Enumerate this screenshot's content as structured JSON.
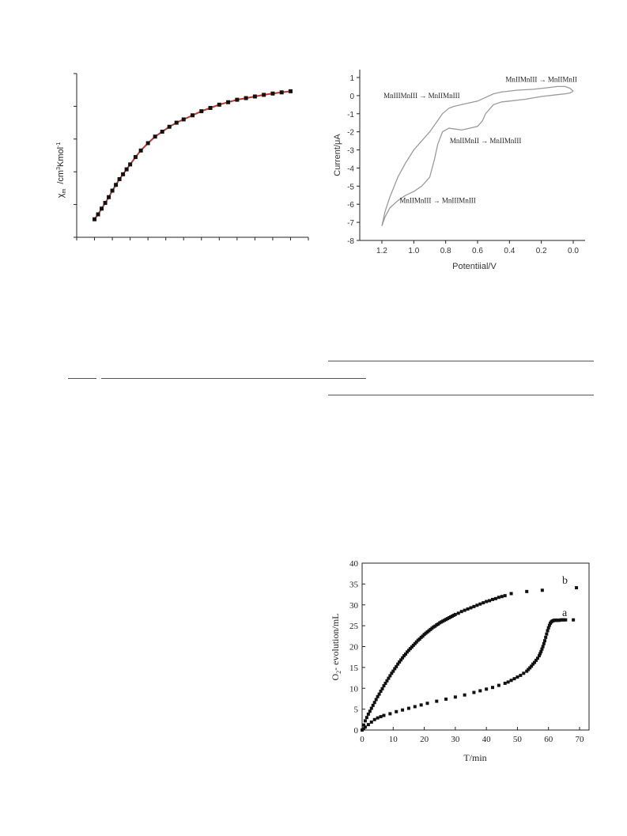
{
  "chi_chart": {
    "chart_data": {
      "type": "scatter",
      "ylabel": "χm /cm3Kmol-1",
      "ylabel_main": "χ",
      "ylabel_sub": "m",
      "ylabel_unit_a": "/cm",
      "ylabel_unit_sup3": "3",
      "ylabel_unit_b": "Kmol",
      "ylabel_unit_sup": "-1",
      "ylim": [
        0,
        10
      ],
      "xlim": [
        0,
        13
      ],
      "grid": false,
      "series": [
        {
          "x": [
            1,
            1.2,
            1.4,
            1.6,
            1.8,
            2,
            2.2,
            2.4,
            2.6,
            2.8,
            3,
            3.3,
            3.6,
            4,
            4.4,
            4.8,
            5.2,
            5.6,
            6,
            6.5,
            7,
            7.5,
            8,
            8.5,
            9,
            9.5,
            10,
            10.5,
            11,
            11.5,
            12
          ],
          "y": [
            1.1,
            1.4,
            1.75,
            2.1,
            2.45,
            2.85,
            3.2,
            3.55,
            3.85,
            4.15,
            4.45,
            4.9,
            5.3,
            5.75,
            6.15,
            6.45,
            6.75,
            7,
            7.2,
            7.45,
            7.7,
            7.9,
            8.1,
            8.25,
            8.4,
            8.5,
            8.6,
            8.7,
            8.78,
            8.85,
            8.92
          ]
        }
      ]
    }
  },
  "cv_chart": {
    "chart_data": {
      "type": "line",
      "xlabel": "Potentiial/V",
      "ylabel": "Current/μA",
      "xlim": [
        1.2,
        0.0
      ],
      "ylim": [
        -8,
        1
      ],
      "xticks": [
        "1.2",
        "1.0",
        "0.8",
        "0.6",
        "0.4",
        "0.2",
        "0.0"
      ],
      "xtick_values": [
        1.2,
        1.0,
        0.8,
        0.6,
        0.4,
        0.2,
        0.0
      ],
      "yticks": [
        "1",
        "0",
        "-1",
        "-2",
        "-3",
        "-4",
        "-5",
        "-6",
        "-7",
        "-8"
      ],
      "ytick_values": [
        1,
        0,
        -1,
        -2,
        -3,
        -4,
        -5,
        -6,
        -7,
        -8
      ],
      "grid": false,
      "color": "#9a9a9a",
      "series": [
        {
          "x": [
            0.0,
            0.02,
            0.05,
            0.1,
            0.15,
            0.25,
            0.35,
            0.45,
            0.5,
            0.55,
            0.6,
            0.65,
            0.7,
            0.75,
            0.78,
            0.82,
            0.86,
            0.9,
            0.95,
            1.0,
            1.05,
            1.1,
            1.15,
            1.18,
            1.2,
            1.18,
            1.15,
            1.1,
            1.05,
            1.0,
            0.95,
            0.9,
            0.87,
            0.85,
            0.82,
            0.78,
            0.74,
            0.7,
            0.65,
            0.6,
            0.57,
            0.55,
            0.5,
            0.45,
            0.4,
            0.3,
            0.2,
            0.1,
            0.05,
            0.02,
            0.0
          ],
          "y": [
            0.25,
            0.4,
            0.5,
            0.5,
            0.45,
            0.35,
            0.3,
            0.2,
            0.1,
            -0.1,
            -0.3,
            -0.4,
            -0.5,
            -0.6,
            -0.7,
            -1.0,
            -1.5,
            -2.0,
            -2.5,
            -3.0,
            -3.7,
            -4.5,
            -5.6,
            -6.4,
            -7.2,
            -6.7,
            -6.2,
            -5.8,
            -5.5,
            -5.3,
            -5.0,
            -4.5,
            -3.5,
            -2.7,
            -2.0,
            -1.8,
            -1.85,
            -1.9,
            -1.8,
            -1.7,
            -1.4,
            -1.0,
            -0.5,
            -0.35,
            -0.3,
            -0.2,
            -0.05,
            0.05,
            0.1,
            0.15,
            0.25
          ]
        }
      ],
      "annotations": [
        {
          "text": "MnIIMnIII",
          "arrow": "→",
          "text2": "MnIIMnII",
          "x": 0.2,
          "y": 0.9
        },
        {
          "text": "MnIIIMnIII",
          "arrow": "→",
          "text2": "MnIIMnIII",
          "x": 0.95,
          "y": 0.0
        },
        {
          "text": "MnIIMnII",
          "arrow": "→",
          "text2": "MnIIMnIII",
          "x": 0.55,
          "y": -2.5
        },
        {
          "text": "MnIIMnIII",
          "arrow": "→",
          "text2": "MnIIIMnIII",
          "x": 0.85,
          "y": -5.8
        }
      ]
    }
  },
  "o2_chart": {
    "chart_data": {
      "type": "scatter",
      "xlabel": "T/min",
      "ylabel_main": "O",
      "ylabel_sub": "2",
      "ylabel_rest": "- evolution/mL",
      "xlim": [
        0,
        70
      ],
      "ylim": [
        0,
        40
      ],
      "xticks": [
        "0",
        "10",
        "20",
        "30",
        "40",
        "50",
        "60",
        "70"
      ],
      "xtick_values": [
        0,
        10,
        20,
        30,
        40,
        50,
        60,
        70
      ],
      "yticks": [
        "0",
        "5",
        "10",
        "15",
        "20",
        "25",
        "30",
        "35",
        "40"
      ],
      "ytick_values": [
        0,
        5,
        10,
        15,
        20,
        25,
        30,
        35,
        40
      ],
      "grid": false,
      "series": [
        {
          "name": "b",
          "x": [
            0,
            0.5,
            1,
            1.5,
            2,
            2.5,
            3,
            3.5,
            4,
            4.5,
            5,
            5.5,
            6,
            6.5,
            7,
            7.5,
            8,
            8.5,
            9,
            9.5,
            10,
            10.5,
            11,
            11.5,
            12,
            12.5,
            13,
            13.5,
            14,
            14.5,
            15,
            15.5,
            16,
            16.5,
            17,
            17.5,
            18,
            18.5,
            19,
            19.5,
            20,
            20.5,
            21,
            21.5,
            22,
            22.5,
            23,
            23.5,
            24,
            24.5,
            25,
            25.5,
            26,
            26.5,
            27,
            27.5,
            28,
            28.5,
            29,
            29.5,
            30,
            31,
            32,
            33,
            34,
            35,
            36,
            37,
            38,
            39,
            40,
            41,
            42,
            43,
            44,
            45,
            46,
            48,
            53,
            58,
            69
          ],
          "y": [
            0,
            1.2,
            2.2,
            3.0,
            3.8,
            4.5,
            5.2,
            5.9,
            6.6,
            7.3,
            8.0,
            8.6,
            9.3,
            9.9,
            10.6,
            11.2,
            11.8,
            12.4,
            13.0,
            13.6,
            14.1,
            14.7,
            15.2,
            15.8,
            16.3,
            16.8,
            17.3,
            17.8,
            18.2,
            18.7,
            19.1,
            19.5,
            19.9,
            20.3,
            20.7,
            21.1,
            21.5,
            21.8,
            22.2,
            22.5,
            22.9,
            23.2,
            23.5,
            23.8,
            24.1,
            24.4,
            24.7,
            24.9,
            25.2,
            25.4,
            25.7,
            25.9,
            26.1,
            26.3,
            26.5,
            26.7,
            26.9,
            27.1,
            27.3,
            27.5,
            27.7,
            28.0,
            28.4,
            28.7,
            29.0,
            29.3,
            29.6,
            29.9,
            30.2,
            30.5,
            30.8,
            31.0,
            31.3,
            31.5,
            31.8,
            32.0,
            32.2,
            32.7,
            33.2,
            33.5,
            34.1
          ]
        },
        {
          "name": "a",
          "x": [
            0,
            0.5,
            1,
            2,
            3,
            4,
            5,
            6,
            7,
            9,
            11,
            13,
            15,
            17,
            19,
            21,
            24,
            27,
            30,
            33,
            36,
            38,
            40,
            42,
            44,
            46,
            47,
            48,
            49,
            50,
            51,
            52,
            53,
            53.5,
            54,
            54.5,
            55,
            55.5,
            56,
            56.5,
            57,
            57.3,
            57.6,
            57.9,
            58.2,
            58.5,
            58.8,
            59.1,
            59.4,
            59.7,
            60,
            60.3,
            60.6,
            60.9,
            61.2,
            61.5,
            61.8,
            62.1,
            62.4,
            62.7,
            63,
            63.5,
            64,
            64.5,
            65,
            65.5,
            68
          ],
          "y": [
            0,
            0.3,
            0.7,
            1.3,
            1.9,
            2.5,
            2.9,
            3.2,
            3.5,
            3.9,
            4.4,
            4.8,
            5.2,
            5.6,
            6.0,
            6.4,
            6.9,
            7.4,
            7.9,
            8.4,
            9.0,
            9.4,
            9.8,
            10.2,
            10.7,
            11.2,
            11.5,
            11.9,
            12.3,
            12.7,
            13.1,
            13.6,
            14.1,
            14.5,
            14.9,
            15.3,
            15.8,
            16.2,
            16.7,
            17.2,
            17.8,
            18.3,
            18.8,
            19.4,
            20.0,
            20.7,
            21.4,
            22.2,
            23.0,
            23.8,
            24.5,
            25.1,
            25.6,
            25.9,
            26.1,
            26.2,
            26.3,
            26.3,
            26.3,
            26.3,
            26.3,
            26.3,
            26.4,
            26.4,
            26.4,
            26.4,
            26.4
          ]
        }
      ],
      "series_labels": [
        "b",
        "a"
      ]
    }
  }
}
